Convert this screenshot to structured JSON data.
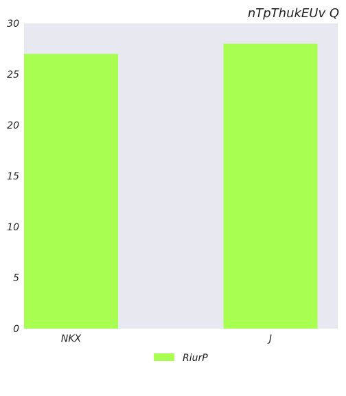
{
  "chart_data": {
    "type": "bar",
    "title": "nTpThukEUv Q",
    "categories": [
      "NKX",
      "J"
    ],
    "series": [
      {
        "name": "RiurP",
        "values": [
          27,
          28
        ],
        "color": "#a8ff52"
      }
    ],
    "xlabel": "",
    "ylabel": "",
    "ylim": [
      0,
      30
    ],
    "yticks": [
      0,
      5,
      10,
      15,
      20,
      25,
      30
    ],
    "grid": false,
    "legend_position": "bottom-center",
    "plot_background": "#e8e8f0"
  }
}
